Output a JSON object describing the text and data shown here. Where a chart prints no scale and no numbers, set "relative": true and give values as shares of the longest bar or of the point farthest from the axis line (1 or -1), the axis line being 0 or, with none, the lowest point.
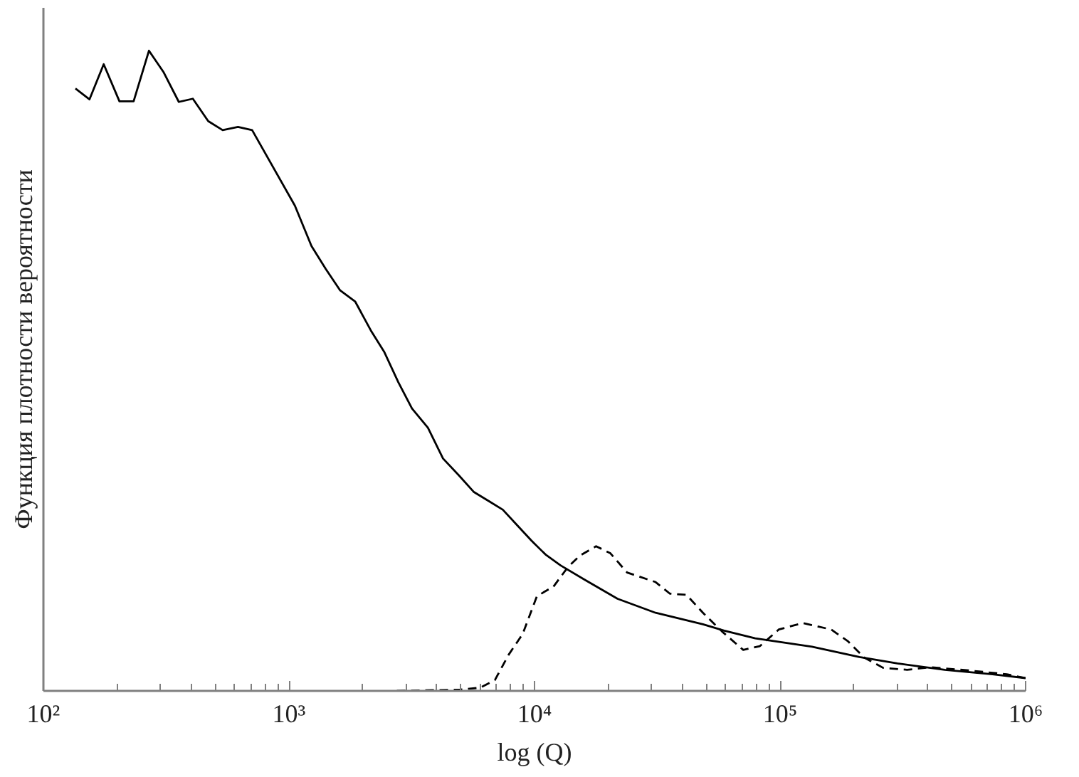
{
  "chart_data": {
    "type": "line",
    "xlabel": "log (Q)",
    "ylabel": "Функция плотности вероятности",
    "relative": true,
    "log": "x",
    "xlim": [
      100,
      1000000
    ],
    "xticks": [
      {
        "value": 100,
        "label": "10²"
      },
      {
        "value": 200,
        "label": null
      },
      {
        "value": 300,
        "label": null
      },
      {
        "value": 400,
        "label": null
      },
      {
        "value": 500,
        "label": null
      },
      {
        "value": 600,
        "label": null
      },
      {
        "value": 700,
        "label": null
      },
      {
        "value": 800,
        "label": null
      },
      {
        "value": 900,
        "label": null
      },
      {
        "value": 1000,
        "label": "10³"
      },
      {
        "value": 2000,
        "label": null
      },
      {
        "value": 3000,
        "label": null
      },
      {
        "value": 4000,
        "label": null
      },
      {
        "value": 5000,
        "label": null
      },
      {
        "value": 6000,
        "label": null
      },
      {
        "value": 7000,
        "label": null
      },
      {
        "value": 8000,
        "label": null
      },
      {
        "value": 9000,
        "label": null
      },
      {
        "value": 10000,
        "label": "10⁴"
      },
      {
        "value": 20000,
        "label": null
      },
      {
        "value": 30000,
        "label": null
      },
      {
        "value": 40000,
        "label": null
      },
      {
        "value": 50000,
        "label": null
      },
      {
        "value": 60000,
        "label": null
      },
      {
        "value": 70000,
        "label": null
      },
      {
        "value": 80000,
        "label": null
      },
      {
        "value": 90000,
        "label": null
      },
      {
        "value": 100000,
        "label": "10⁵"
      },
      {
        "value": 200000,
        "label": null
      },
      {
        "value": 300000,
        "label": null
      },
      {
        "value": 400000,
        "label": null
      },
      {
        "value": 500000,
        "label": null
      },
      {
        "value": 600000,
        "label": null
      },
      {
        "value": 700000,
        "label": null
      },
      {
        "value": 800000,
        "label": null
      },
      {
        "value": 900000,
        "label": null
      },
      {
        "value": 1000000,
        "label": "10⁶"
      }
    ],
    "series": [
      {
        "color": "#000000",
        "line_style": "solid",
        "x": [
          135,
          154,
          176,
          204,
          233,
          269,
          308,
          356,
          406,
          469,
          537,
          620,
          708,
          1057,
          1235,
          1412,
          1613,
          1862,
          2155,
          2440,
          2790,
          3170,
          3680,
          4240,
          4910,
          5650,
          6550,
          7430,
          8490,
          9700,
          11090,
          12770,
          15960,
          21780,
          31120,
          48530,
          59290,
          79250,
          134900,
          210400,
          300600,
          468800,
          732800,
          1000000
        ],
        "values": [
          0.941,
          0.924,
          0.979,
          0.921,
          0.921,
          1.0,
          0.967,
          0.92,
          0.925,
          0.89,
          0.876,
          0.881,
          0.876,
          0.758,
          0.695,
          0.659,
          0.626,
          0.608,
          0.563,
          0.53,
          0.482,
          0.441,
          0.411,
          0.363,
          0.337,
          0.311,
          0.296,
          0.283,
          0.259,
          0.235,
          0.213,
          0.196,
          0.174,
          0.144,
          0.122,
          0.104,
          0.094,
          0.082,
          0.069,
          0.053,
          0.043,
          0.033,
          0.026,
          0.02
        ]
      },
      {
        "color": "#000000",
        "line_style": "dashed",
        "x": [
          2750,
          5010,
          6000,
          6900,
          7830,
          8950,
          10230,
          11950,
          13650,
          15270,
          17820,
          20370,
          23820,
          31120,
          35560,
          41590,
          48530,
          57980,
          70800,
          82760,
          98900,
          123500,
          161300,
          188400,
          220400,
          263000,
          328900,
          410200,
          586100,
          837500,
          1000000
        ],
        "values": [
          0,
          0.002,
          0.005,
          0.017,
          0.056,
          0.089,
          0.148,
          0.163,
          0.193,
          0.211,
          0.226,
          0.215,
          0.185,
          0.17,
          0.152,
          0.15,
          0.122,
          0.093,
          0.064,
          0.07,
          0.096,
          0.106,
          0.096,
          0.078,
          0.052,
          0.036,
          0.033,
          0.037,
          0.032,
          0.026,
          0.02
        ]
      }
    ]
  }
}
